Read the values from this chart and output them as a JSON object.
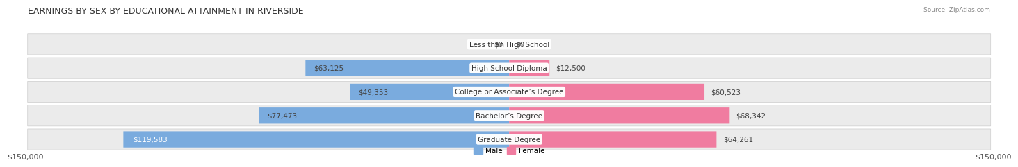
{
  "title": "EARNINGS BY SEX BY EDUCATIONAL ATTAINMENT IN RIVERSIDE",
  "source": "Source: ZipAtlas.com",
  "categories": [
    "Less than High School",
    "High School Diploma",
    "College or Associate’s Degree",
    "Bachelor’s Degree",
    "Graduate Degree"
  ],
  "male_values": [
    0,
    63125,
    49353,
    77473,
    119583
  ],
  "female_values": [
    0,
    12500,
    60523,
    68342,
    64261
  ],
  "male_labels": [
    "$0",
    "$63,125",
    "$49,353",
    "$77,473",
    "$119,583"
  ],
  "female_labels": [
    "$0",
    "$12,500",
    "$60,523",
    "$68,342",
    "$64,261"
  ],
  "male_label_inside": [
    false,
    false,
    false,
    false,
    true
  ],
  "female_label_inside": [
    false,
    false,
    false,
    false,
    false
  ],
  "male_color": "#7aabde",
  "female_color": "#f07ca0",
  "row_bg_color": "#ebebeb",
  "max_value": 150000,
  "legend_male": "Male",
  "legend_female": "Female",
  "title_fontsize": 9,
  "label_fontsize": 7.5,
  "category_fontsize": 7.5,
  "axis_label_fontsize": 8
}
